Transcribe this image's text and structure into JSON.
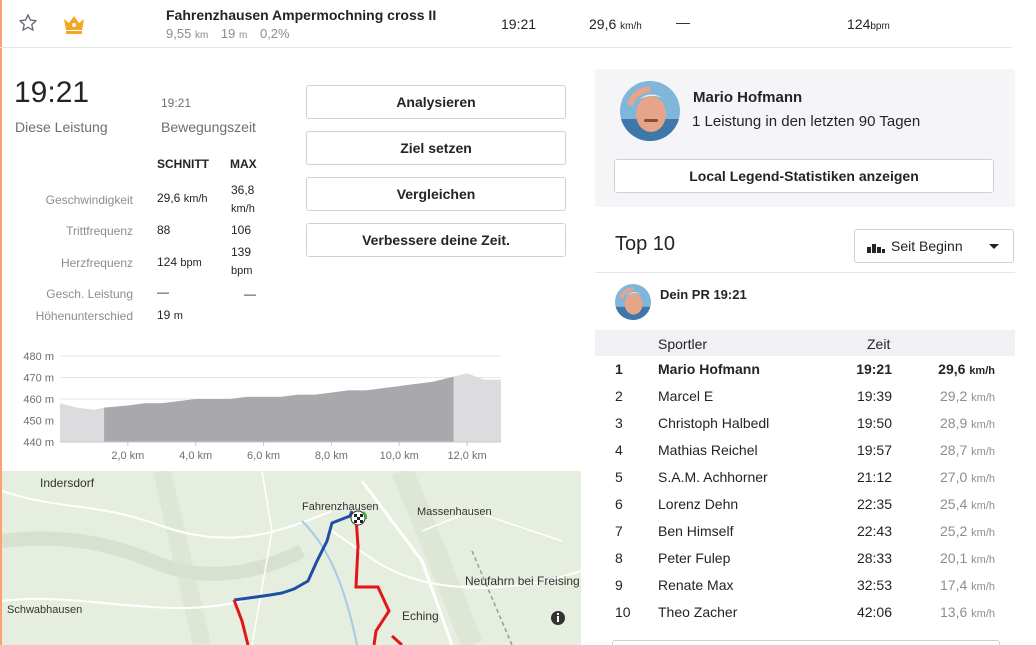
{
  "segment": {
    "name": "Fahrenzhausen Ampermochning cross II",
    "distance": "9,55",
    "distance_unit": "km",
    "elevation": "19",
    "elevation_unit": "m",
    "grade": "0,2%",
    "time": "19:21",
    "speed": "29,6",
    "speed_unit": "km/h",
    "power": "—",
    "heart_rate": "124",
    "heart_rate_unit": "bpm"
  },
  "effort": {
    "elapsed_time": "19:21",
    "elapsed_label": "Diese Leistung",
    "moving_time": "19:21",
    "moving_label": "Bewegungszeit"
  },
  "stats": {
    "avg_header": "SCHNITT",
    "max_header": "MAX",
    "rows": [
      {
        "label": "Geschwindigkeit",
        "avg": "29,6",
        "avg_unit": "km/h",
        "max": "36,8",
        "max_unit": "km/h"
      },
      {
        "label": "Trittfrequenz",
        "avg": "88",
        "avg_unit": "",
        "max": "106",
        "max_unit": ""
      },
      {
        "label": "Herzfrequenz",
        "avg": "124",
        "avg_unit": "bpm",
        "max": "139",
        "max_unit": "bpm"
      },
      {
        "label": "Gesch. Leistung",
        "avg": "—",
        "avg_unit": "",
        "max": "—",
        "max_unit": ""
      },
      {
        "label": "Höhenunterschied",
        "avg": "19",
        "avg_unit": "m",
        "max": "",
        "max_unit": ""
      }
    ]
  },
  "actions": {
    "analyze": "Analysieren",
    "set_goal": "Ziel setzen",
    "compare": "Vergleichen",
    "improve": "Verbessere deine Zeit."
  },
  "chart_data": {
    "type": "area",
    "title": "",
    "xlabel": "",
    "ylabel": "",
    "x_unit": "km",
    "y_unit": "m",
    "xlim": [
      0,
      13.0
    ],
    "ylim": [
      440,
      480
    ],
    "x_ticks": [
      "2,0 km",
      "4,0 km",
      "6,0 km",
      "8,0 km",
      "10,0 km",
      "12,0 km"
    ],
    "y_ticks": [
      "480 m",
      "470 m",
      "460 m",
      "450 m",
      "440 m"
    ],
    "highlight_range": [
      1.3,
      11.6
    ],
    "x": [
      0,
      0.5,
      1.0,
      1.3,
      2.0,
      2.5,
      3.0,
      3.5,
      4.0,
      4.5,
      5.0,
      5.5,
      6.0,
      6.5,
      7.0,
      7.5,
      8.0,
      8.5,
      9.0,
      9.5,
      10.0,
      10.5,
      11.0,
      11.5,
      12.0,
      12.5,
      13.0
    ],
    "y": [
      458,
      456,
      455,
      456,
      457,
      458,
      458,
      459,
      460,
      460,
      460,
      461,
      461,
      461,
      462,
      462,
      463,
      464,
      464,
      465,
      466,
      467,
      468,
      470,
      472,
      469,
      469
    ]
  },
  "map": {
    "labels": [
      "Indersdorf",
      "Fahrenzhausen",
      "Massenhausen",
      "Neufahrn bei Freising",
      "Schwabhausen",
      "Eching"
    ],
    "info_icon": "info-icon"
  },
  "local_legend": {
    "name": "Mario Hofmann",
    "subtitle": "1 Leistung in den letzten 90 Tagen",
    "button": "Local Legend-Statistiken anzeigen"
  },
  "leaderboard": {
    "title": "Top 10",
    "filter": "Seit Beginn",
    "pr_label": "Dein PR 19:21",
    "col_athlete": "Sportler",
    "col_time": "Zeit",
    "speed_unit": "km/h",
    "rows": [
      {
        "rank": "1",
        "athlete": "Mario Hofmann",
        "time": "19:21",
        "speed": "29,6"
      },
      {
        "rank": "2",
        "athlete": "Marcel E",
        "time": "19:39",
        "speed": "29,2"
      },
      {
        "rank": "3",
        "athlete": "Christoph Halbedl",
        "time": "19:50",
        "speed": "28,9"
      },
      {
        "rank": "4",
        "athlete": "Mathias Reichel",
        "time": "19:57",
        "speed": "28,7"
      },
      {
        "rank": "5",
        "athlete": "S.A.M. Achhorner",
        "time": "21:12",
        "speed": "27,0"
      },
      {
        "rank": "6",
        "athlete": "Lorenz Dehn",
        "time": "22:35",
        "speed": "25,4"
      },
      {
        "rank": "7",
        "athlete": "Ben Himself",
        "time": "22:43",
        "speed": "25,2"
      },
      {
        "rank": "8",
        "athlete": "Peter Fulep",
        "time": "28:33",
        "speed": "20,1"
      },
      {
        "rank": "9",
        "athlete": "Renate Max",
        "time": "32:53",
        "speed": "17,4"
      },
      {
        "rank": "10",
        "athlete": "Theo Zacher",
        "time": "42:06",
        "speed": "13,6"
      }
    ]
  },
  "colors": {
    "accent": "#fc5200",
    "crown": "#f5a623",
    "route_blue": "#1f4ea3",
    "route_red": "#e3161b",
    "elevation_fill": "#a9a9ad",
    "elevation_fill_light": "#dcdcde"
  }
}
